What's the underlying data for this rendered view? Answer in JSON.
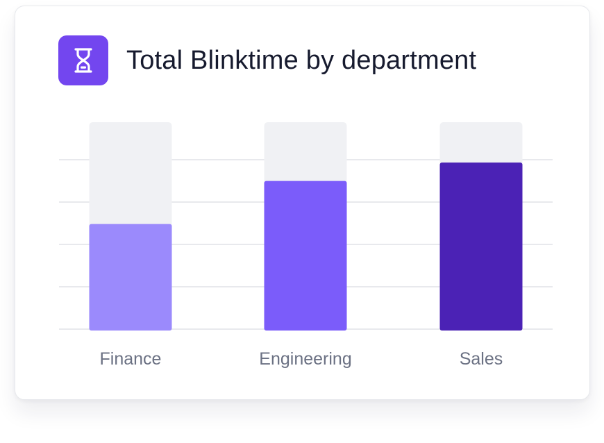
{
  "card": {
    "title": "Total Blinktime by department",
    "icon": "hourglass-icon",
    "icon_bg": "#7346ef"
  },
  "colors": {
    "track": "#f0f1f4",
    "gridline": "#e8e9ed",
    "label": "#6b7183"
  },
  "chart_data": {
    "type": "bar",
    "title": "Total Blinktime by department",
    "categories": [
      "Finance",
      "Engineering",
      "Sales"
    ],
    "values": [
      52,
      73,
      82
    ],
    "ylim": [
      0,
      100
    ],
    "bar_colors": [
      "#9b8afc",
      "#7b5cfa",
      "#4b22b5"
    ],
    "grid": true,
    "xlabel": "",
    "ylabel": ""
  }
}
